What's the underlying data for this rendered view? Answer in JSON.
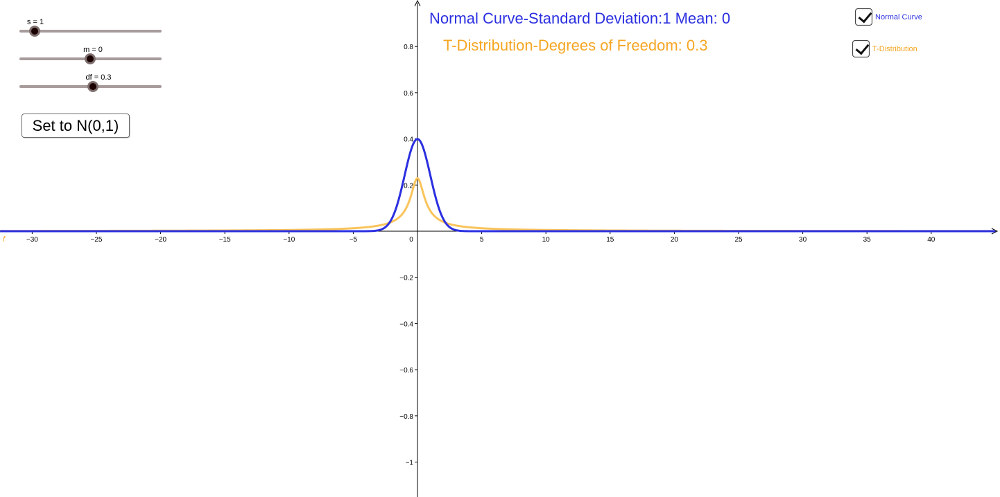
{
  "sliders": [
    {
      "label": "s = 1",
      "min": 0,
      "max": 10,
      "value": 1
    },
    {
      "label": "m = 0",
      "min": -5,
      "max": 5,
      "value": 0
    },
    {
      "label": "df = 0.3",
      "min": 0,
      "max": 3,
      "value": 0.3
    }
  ],
  "button": {
    "label": "Set to N(0,1)"
  },
  "titles": {
    "normal": "Normal Curve-Standard Deviation:1 Mean: 0",
    "t": "T-Distribution-Degrees of Freedom: 0.3"
  },
  "checkboxes": [
    {
      "label": "Normal Curve",
      "checked": true
    },
    {
      "label": "T-Distribution",
      "checked": true
    }
  ],
  "colors": {
    "normal": "#2b2fe0",
    "t_curve": "#f9c45c",
    "t_text": "#f5a623",
    "axis": "#000000"
  },
  "function_label": "f",
  "chart_data": {
    "type": "line",
    "xlim": [
      -32.5,
      45
    ],
    "ylim": [
      -1.15,
      1.0
    ],
    "x_ticks": [
      -30,
      -25,
      -20,
      -15,
      -10,
      -5,
      0,
      5,
      10,
      15,
      20,
      25,
      30,
      35,
      40
    ],
    "y_ticks": [
      -1,
      -0.8,
      -0.6,
      -0.4,
      -0.2,
      0.2,
      0.4,
      0.6,
      0.8
    ],
    "x_tick_labels": [
      "−30",
      "−25",
      "−20",
      "−15",
      "−10",
      "−5",
      "0",
      "5",
      "10",
      "15",
      "20",
      "25",
      "30",
      "35",
      "40"
    ],
    "y_tick_labels": [
      "−1",
      "−0.8",
      "−0.6",
      "−0.4",
      "−0.2",
      "0.2",
      "0.4",
      "0.6",
      "0.8"
    ],
    "series": [
      {
        "name": "Normal Curve",
        "distribution": "normal",
        "mean": 0,
        "sd": 1
      },
      {
        "name": "T-Distribution",
        "distribution": "t",
        "df": 0.3
      }
    ]
  }
}
